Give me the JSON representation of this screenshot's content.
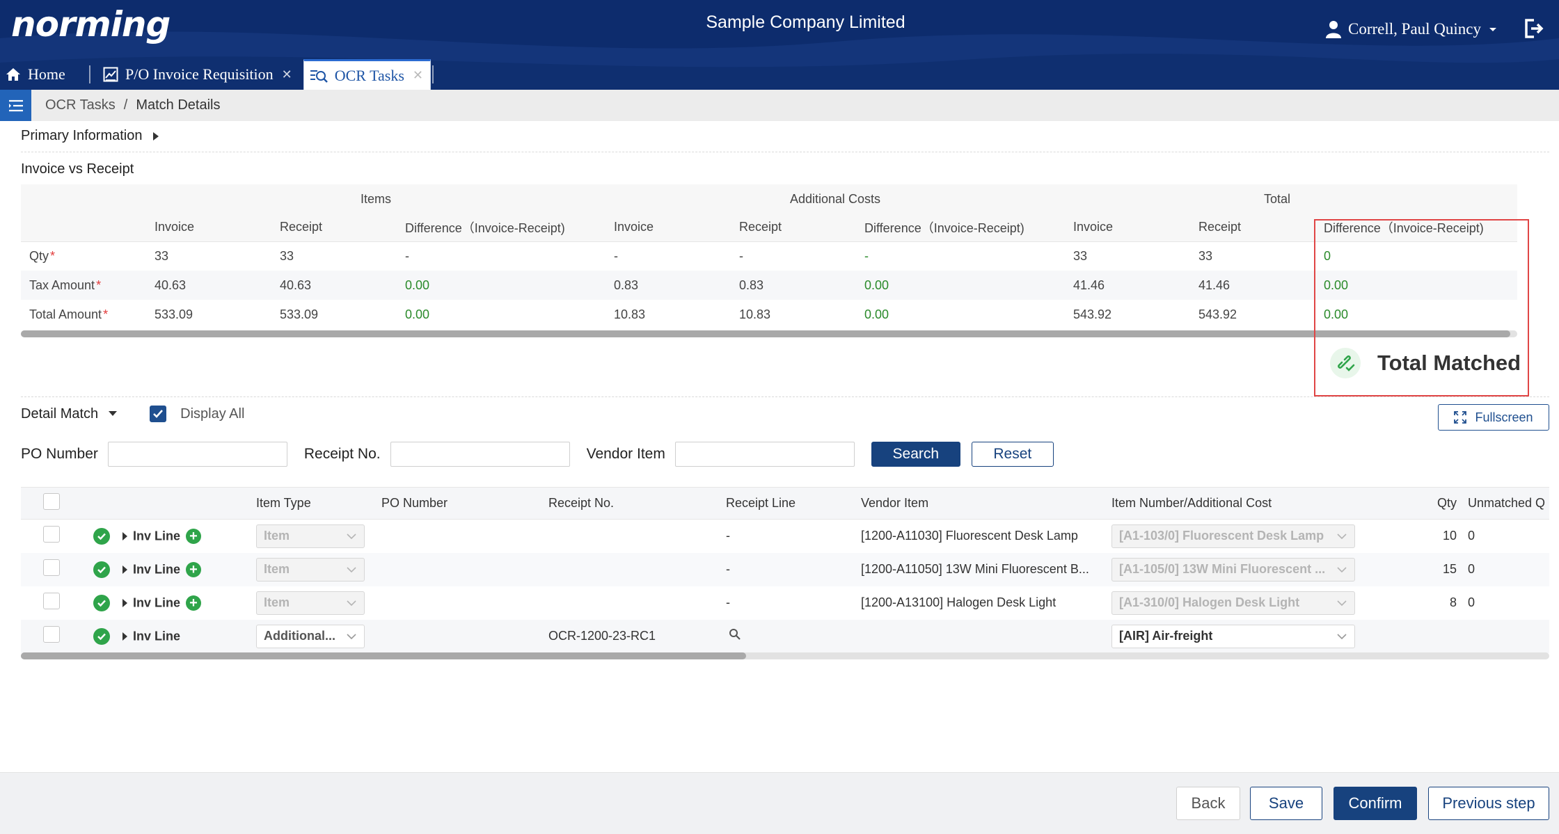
{
  "header": {
    "logo": "norming",
    "company": "Sample Company Limited",
    "user": "Correll, Paul Quincy"
  },
  "tabs": [
    {
      "label": "Home"
    },
    {
      "label": "P/O Invoice Requisition"
    },
    {
      "label": "OCR Tasks"
    }
  ],
  "breadcrumb": {
    "parent": "OCR Tasks",
    "separator": "/",
    "current": "Match Details"
  },
  "sections": {
    "primary_info": "Primary Information",
    "invoice_vs_receipt": "Invoice vs Receipt"
  },
  "summary_table": {
    "groups": [
      "Items",
      "Additional Costs",
      "Total"
    ],
    "columns": [
      "Invoice",
      "Receipt",
      "Difference（Invoice-Receipt)",
      "Invoice",
      "Receipt",
      "Difference（Invoice-Receipt)",
      "Invoice",
      "Receipt",
      "Difference（Invoice-Receipt)"
    ],
    "rows": [
      {
        "label": "Qty",
        "required": "*",
        "values": [
          "33",
          "33",
          "-",
          "-",
          "-",
          "-",
          "33",
          "33",
          "0"
        ]
      },
      {
        "label": "Tax Amount",
        "required": "*",
        "values": [
          "40.63",
          "40.63",
          "0.00",
          "0.83",
          "0.83",
          "0.00",
          "41.46",
          "41.46",
          "0.00"
        ]
      },
      {
        "label": "Total Amount",
        "required": "*",
        "values": [
          "533.09",
          "533.09",
          "0.00",
          "10.83",
          "10.83",
          "0.00",
          "543.92",
          "543.92",
          "0.00"
        ]
      }
    ],
    "status": "Total Matched"
  },
  "detail": {
    "title": "Detail Match",
    "display_all": "Display All",
    "display_all_checked": true,
    "fullscreen": "Fullscreen"
  },
  "filters": {
    "po_number_label": "PO Number",
    "po_number_value": "",
    "receipt_no_label": "Receipt No.",
    "receipt_no_value": "",
    "vendor_item_label": "Vendor Item",
    "vendor_item_value": "",
    "search": "Search",
    "reset": "Reset"
  },
  "grid": {
    "columns": [
      "Item Type",
      "PO Number",
      "Receipt No.",
      "Receipt Line",
      "Vendor Item",
      "Item Number/Additional Cost",
      "Qty",
      "Unmatched Q"
    ],
    "rows": [
      {
        "line": "Inv Line",
        "item_type": "Item",
        "po_number": "",
        "receipt_no": "",
        "receipt_line": "-",
        "vendor_item": "[1200-A11030] Fluorescent Desk Lamp",
        "item_number": "[A1-103/0] Fluorescent Desk Lamp",
        "qty": "10",
        "unmatched": "0"
      },
      {
        "line": "Inv Line",
        "item_type": "Item",
        "po_number": "",
        "receipt_no": "",
        "receipt_line": "-",
        "vendor_item": "[1200-A11050] 13W Mini Fluorescent B...",
        "item_number": "[A1-105/0] 13W Mini Fluorescent ...",
        "qty": "15",
        "unmatched": "0"
      },
      {
        "line": "Inv Line",
        "item_type": "Item",
        "po_number": "",
        "receipt_no": "",
        "receipt_line": "-",
        "vendor_item": "[1200-A13100] Halogen Desk Light",
        "item_number": "[A1-310/0] Halogen Desk Light",
        "qty": "8",
        "unmatched": "0"
      },
      {
        "line": "Inv Line",
        "item_type": "Additional...",
        "po_number": "",
        "receipt_no": "OCR-1200-23-RC1",
        "receipt_line": "",
        "vendor_item": "",
        "item_number": "[AIR] Air-freight",
        "qty": "",
        "unmatched": ""
      }
    ]
  },
  "footer": {
    "back": "Back",
    "save": "Save",
    "confirm": "Confirm",
    "previous": "Previous step"
  }
}
